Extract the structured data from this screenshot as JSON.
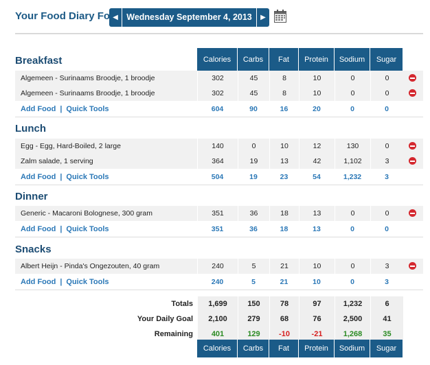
{
  "header": {
    "title": "Your Food Diary For:",
    "date": "Wednesday September 4, 2013"
  },
  "columns": [
    "Calories",
    "Carbs",
    "Fat",
    "Protein",
    "Sodium",
    "Sugar"
  ],
  "actions": {
    "add_food": "Add Food",
    "separator": "|",
    "quick_tools": "Quick Tools"
  },
  "meals": [
    {
      "title": "Breakfast",
      "items": [
        {
          "name": "Algemeen - Surinaams Broodje, 1 broodje",
          "values": [
            "302",
            "45",
            "8",
            "10",
            "0",
            "0"
          ]
        },
        {
          "name": "Algemeen - Surinaams Broodje, 1 broodje",
          "values": [
            "302",
            "45",
            "8",
            "10",
            "0",
            "0"
          ]
        }
      ],
      "totals": [
        "604",
        "90",
        "16",
        "20",
        "0",
        "0"
      ]
    },
    {
      "title": "Lunch",
      "items": [
        {
          "name": "Egg - Egg, Hard-Boiled, 2 large",
          "values": [
            "140",
            "0",
            "10",
            "12",
            "130",
            "0"
          ]
        },
        {
          "name": "Zalm salade, 1 serving",
          "values": [
            "364",
            "19",
            "13",
            "42",
            "1,102",
            "3"
          ]
        }
      ],
      "totals": [
        "504",
        "19",
        "23",
        "54",
        "1,232",
        "3"
      ]
    },
    {
      "title": "Dinner",
      "items": [
        {
          "name": "Generic - Macaroni Bolognese, 300 gram",
          "values": [
            "351",
            "36",
            "18",
            "13",
            "0",
            "0"
          ]
        }
      ],
      "totals": [
        "351",
        "36",
        "18",
        "13",
        "0",
        "0"
      ]
    },
    {
      "title": "Snacks",
      "items": [
        {
          "name": "Albert Heijn - Pinda's Ongezouten, 40 gram",
          "values": [
            "240",
            "5",
            "21",
            "10",
            "0",
            "3"
          ]
        }
      ],
      "totals": [
        "240",
        "5",
        "21",
        "10",
        "0",
        "3"
      ]
    }
  ],
  "summary": {
    "totals": {
      "label": "Totals",
      "values": [
        "1,699",
        "150",
        "78",
        "97",
        "1,232",
        "6"
      ]
    },
    "goal": {
      "label": "Your Daily Goal",
      "values": [
        "2,100",
        "279",
        "68",
        "76",
        "2,500",
        "41"
      ]
    },
    "remaining": {
      "label": "Remaining",
      "values": [
        "401",
        "129",
        "-10",
        "-21",
        "1,268",
        "35"
      ]
    }
  },
  "colors": {
    "header_blue": "#1b5b88",
    "link_blue": "#2b78b7",
    "positive": "#2a8a22",
    "negative": "#d61f1f",
    "delete": "#d4282f"
  }
}
